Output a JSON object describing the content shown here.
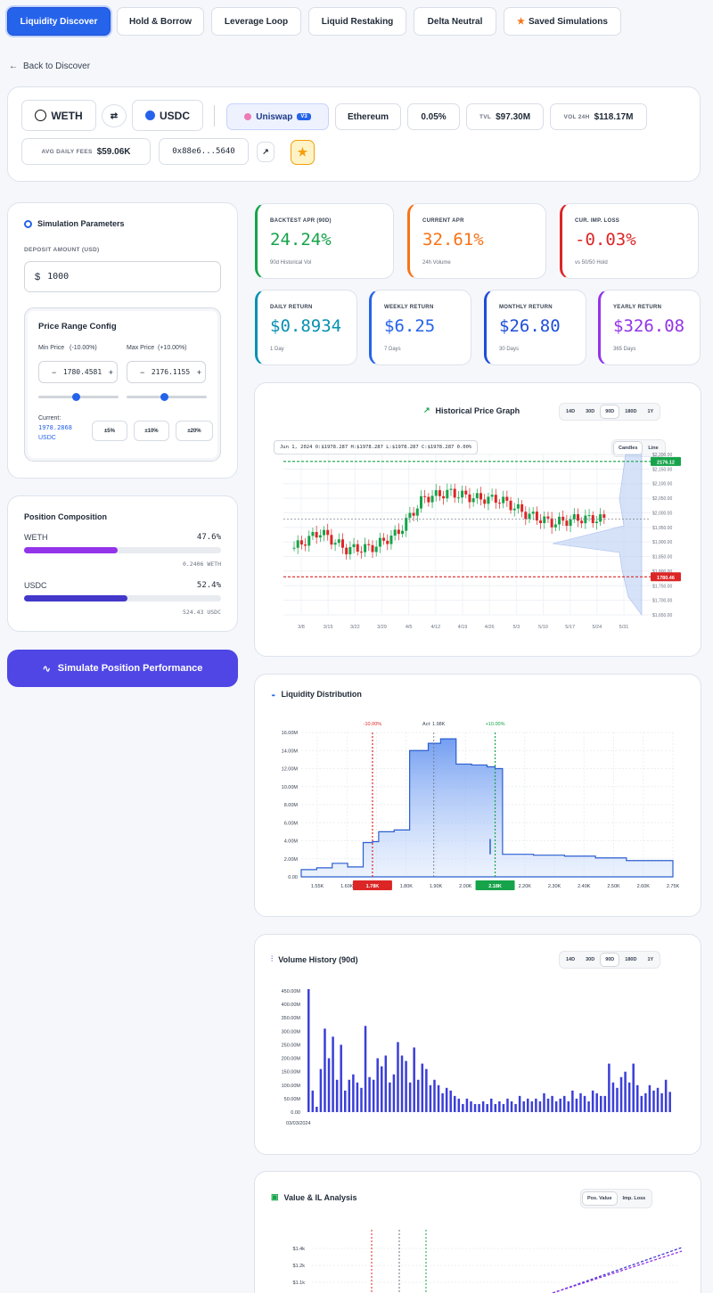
{
  "nav": {
    "tabs": [
      {
        "label": "Liquidity Discover",
        "active": true
      },
      {
        "label": "Hold & Borrow"
      },
      {
        "label": "Leverage Loop"
      },
      {
        "label": "Liquid Restaking"
      },
      {
        "label": "Delta Neutral"
      },
      {
        "label": "Saved Simulations"
      }
    ],
    "back": "Back to Discover"
  },
  "pool": {
    "token0": "WETH",
    "token1": "USDC",
    "dex": "Uniswap",
    "dex_version": "V3",
    "chain": "Ethereum",
    "fee": "0.05%",
    "tvl_label": "TVL",
    "tvl": "$97.30M",
    "vol_label": "VOL 24H",
    "vol": "$118.17M",
    "fees_label": "AVG DAILY FEES",
    "fees": "$59.06K",
    "address": "0x88e6...5640"
  },
  "params": {
    "title": "Simulation Parameters",
    "deposit_label": "DEPOSIT AMOUNT (USD)",
    "currency": "$",
    "deposit": "1000",
    "range_title": "Price Range Config",
    "min_label": "Min Price",
    "min_pct": "(-10.00%)",
    "min_value": "1780.4581",
    "max_label": "Max Price",
    "max_pct": "(+10.00%)",
    "max_value": "2176.1155",
    "current_label": "Current:",
    "current_value": "1978.2868",
    "current_unit": "USDC",
    "presets": [
      "±5%",
      "±10%",
      "±20%"
    ]
  },
  "composition": {
    "title": "Position Composition",
    "rows": [
      {
        "token": "WETH",
        "pct": "47.6%",
        "amount": "0.2406 WETH",
        "fill": 0.476,
        "color": "#9333ea"
      },
      {
        "token": "USDC",
        "pct": "52.4%",
        "amount": "524.43 USDC",
        "fill": 0.524,
        "color": "#4338ca"
      }
    ]
  },
  "simulate_button": "Simulate Position Performance",
  "stats": [
    {
      "title": "BACKTEST APR (90D)",
      "value": "24.24%",
      "sub": "90d Historical Vol",
      "color": "#16a34a"
    },
    {
      "title": "CURRENT APR",
      "value": "32.61%",
      "sub": "24h Volume",
      "color": "#f97316"
    },
    {
      "title": "CUR. IMP. LOSS",
      "value": "-0.03%",
      "sub": "vs 50/50 Hold",
      "color": "#dc2626"
    },
    {
      "title": "DAILY RETURN",
      "value": "$0.8934",
      "sub": "1 Day",
      "color": "#0891b2"
    },
    {
      "title": "WEEKLY RETURN",
      "value": "$6.25",
      "sub": "7 Days",
      "color": "#2563eb"
    },
    {
      "title": "MONTHLY RETURN",
      "value": "$26.80",
      "sub": "30 Days",
      "color": "#1d4ed8"
    },
    {
      "title": "YEARLY RETURN",
      "value": "$326.08",
      "sub": "365 Days",
      "color": "#9333ea"
    }
  ],
  "price_chart": {
    "title": "Historical Price Graph",
    "ranges": [
      "14D",
      "30D",
      "90D",
      "180D",
      "1Y"
    ],
    "active_range": "90D",
    "ohlc": "Jun 1, 2024  O:$1978.287  H:$1978.287  L:$1978.287  C:$1978.287  0.00%",
    "modes": [
      "Candles",
      "Line"
    ],
    "upper_tag": "2176.12",
    "lower_tag": "1780.46"
  },
  "liq_chart": {
    "title": "Liquidity Distribution",
    "min_tag": "-10.00%",
    "cur_tag": "Act: 1.98K",
    "max_tag": "+10.00%",
    "min_price_tag": "1.78K",
    "max_price_tag": "2.18K"
  },
  "vol_chart": {
    "title": "Volume History (90d)",
    "ranges": [
      "14D",
      "30D",
      "90D",
      "180D",
      "1Y"
    ],
    "active_range": "90D",
    "start_date": "03/03/2024"
  },
  "value_chart": {
    "title": "Value & IL Analysis",
    "modes": [
      "Pos. Value",
      "Imp. Loss"
    ]
  },
  "chart_data": [
    {
      "type": "line",
      "title": "Historical Price Graph",
      "x": [
        "3/8",
        "3/15",
        "3/22",
        "3/29",
        "4/5",
        "4/12",
        "4/19",
        "4/26",
        "5/3",
        "5/10",
        "5/17",
        "5/24",
        "5/31"
      ],
      "series": [
        {
          "values": [
            1880,
            1935,
            1875,
            1880,
            1930,
            2050,
            2070,
            2050,
            2045,
            1995,
            1965,
            1980,
            1978
          ]
        }
      ],
      "y_ticks": [
        "$2,200.00",
        "$2,150.00",
        "$2,100.00",
        "$2,050.00",
        "$2,000.00",
        "$1,950.00",
        "$1,900.00",
        "$1,850.00",
        "$1,800.00",
        "$1,750.00",
        "$1,700.00",
        "$1,650.00"
      ],
      "ylim": [
        1650,
        2200
      ],
      "annotations": {
        "upper": 2176.12,
        "lower": 1780.46,
        "current": 1978.29
      }
    },
    {
      "type": "area",
      "title": "Liquidity Distribution",
      "x_ticks": [
        "1.55K",
        "1.60K",
        "1.70K",
        "1.80K",
        "1.90K",
        "2.00K",
        "2.10K",
        "2.20K",
        "2.30K",
        "2.40K",
        "2.50K",
        "2.60K",
        "2.75K"
      ],
      "y_ticks": [
        "0.00",
        "2.00M",
        "4.00M",
        "6.00M",
        "8.00M",
        "10.00M",
        "12.00M",
        "14.00M",
        "16.00M"
      ],
      "ylim": [
        0,
        16000000
      ],
      "x": [
        1550,
        1600,
        1650,
        1700,
        1750,
        1780,
        1800,
        1850,
        1900,
        1960,
        2000,
        2050,
        2100,
        2150,
        2176,
        2200,
        2300,
        2400,
        2500,
        2600,
        2750
      ],
      "values": [
        800000,
        1000000,
        1500000,
        1100000,
        3800000,
        3900000,
        5000000,
        5200000,
        14000000,
        14800000,
        15300000,
        12500000,
        12400000,
        12200000,
        12000000,
        2500000,
        2400000,
        2300000,
        2100000,
        1800000,
        1700000
      ]
    },
    {
      "type": "bar",
      "title": "Volume History (90d)",
      "y_ticks": [
        "0.00",
        "50.00M",
        "100.00M",
        "150.00M",
        "200.00M",
        "250.00M",
        "300.00M",
        "350.00M",
        "400.00M",
        "450.00M"
      ],
      "ylim": [
        0,
        450000000
      ],
      "values": [
        470,
        80,
        20,
        160,
        310,
        200,
        280,
        120,
        250,
        80,
        120,
        140,
        110,
        90,
        320,
        130,
        120,
        200,
        170,
        210,
        110,
        140,
        260,
        210,
        190,
        110,
        240,
        120,
        180,
        160,
        100,
        120,
        100,
        70,
        90,
        80,
        60,
        50,
        30,
        50,
        40,
        30,
        30,
        40,
        30,
        50,
        30,
        40,
        30,
        50,
        40,
        30,
        60,
        40,
        50,
        40,
        50,
        40,
        70,
        50,
        60,
        40,
        50,
        60,
        40,
        80,
        50,
        70,
        60,
        40,
        80,
        70,
        60,
        60,
        180,
        110,
        90,
        130,
        150,
        110,
        180,
        100,
        60,
        70,
        100,
        80,
        90,
        70,
        120,
        75
      ]
    },
    {
      "type": "line",
      "title": "Value & IL Analysis",
      "y_ticks": [
        "$1.4k",
        "$1.2k",
        "$1.1k"
      ]
    }
  ]
}
